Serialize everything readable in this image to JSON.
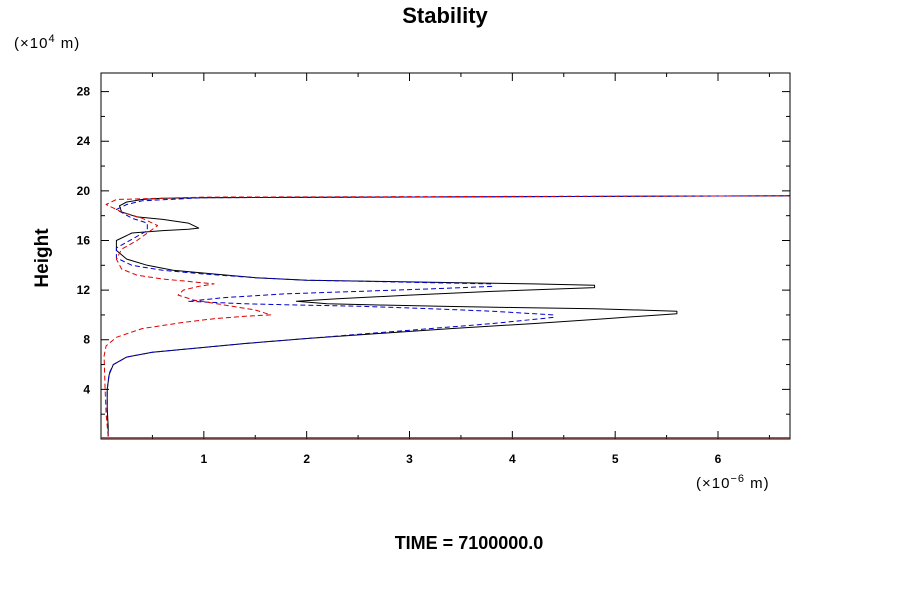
{
  "chart_data": {
    "type": "line",
    "title": "Stability",
    "ylabel": "Height",
    "xlabel": "",
    "y_unit": {
      "prefix": "(×10",
      "exp": "4",
      "suffix": " m)"
    },
    "x_unit": {
      "prefix": "(×10",
      "exp": "−6",
      "suffix": " m)"
    },
    "xlim": [
      0.0,
      6.7
    ],
    "ylim": [
      0.0,
      29.5
    ],
    "x_ticks": [
      1,
      2,
      3,
      4,
      5,
      6
    ],
    "y_ticks": [
      4,
      8,
      12,
      16,
      20,
      24,
      28
    ],
    "x_tick_labels": [
      "1",
      "2",
      "3",
      "4",
      "5",
      "6"
    ],
    "y_tick_labels": [
      "4",
      "8",
      "12",
      "16",
      "20",
      "24",
      "28"
    ],
    "footer": "TIME = 7100000.0",
    "series": [
      {
        "name": "black-solid",
        "color": "#000000",
        "dash": "",
        "x": [
          0.07,
          0.07,
          0.06,
          0.06,
          0.08,
          0.12,
          0.25,
          0.5,
          0.9,
          1.4,
          2.0,
          2.7,
          3.4,
          4.2,
          4.9,
          5.6,
          5.6,
          4.8,
          4.0,
          3.3,
          2.7,
          2.2,
          1.9,
          2.3,
          3.0,
          3.8,
          4.8,
          4.8,
          4.2,
          3.5,
          2.7,
          2.0,
          1.5,
          1.1,
          0.7,
          0.45,
          0.25,
          0.15,
          0.15,
          0.3,
          0.6,
          0.85,
          0.95,
          0.85,
          0.6,
          0.35,
          0.2,
          0.18,
          0.25,
          0.4,
          0.6,
          1.0,
          6.7
        ],
        "y": [
          0.2,
          1.0,
          2.5,
          4.0,
          5.2,
          6.0,
          6.6,
          7.0,
          7.3,
          7.7,
          8.1,
          8.5,
          8.9,
          9.3,
          9.7,
          10.1,
          10.3,
          10.5,
          10.6,
          10.7,
          10.8,
          10.9,
          11.1,
          11.3,
          11.6,
          11.9,
          12.2,
          12.4,
          12.5,
          12.6,
          12.7,
          12.8,
          13.0,
          13.3,
          13.6,
          14.0,
          14.5,
          15.2,
          16.0,
          16.6,
          16.8,
          16.9,
          17.0,
          17.4,
          17.7,
          17.9,
          18.3,
          18.8,
          19.1,
          19.3,
          19.4,
          19.45,
          19.6
        ]
      },
      {
        "name": "blue-dashed",
        "color": "#0000cc",
        "dash": "5,3",
        "x": [
          0.07,
          0.06,
          0.06,
          0.08,
          0.12,
          0.25,
          0.5,
          0.9,
          1.4,
          2.0,
          2.6,
          3.2,
          3.8,
          4.4,
          4.4,
          3.8,
          3.2,
          2.5,
          1.9,
          1.4,
          0.85,
          1.2,
          1.8,
          2.5,
          3.2,
          3.8,
          3.8,
          3.2,
          2.6,
          2.0,
          1.5,
          1.0,
          0.6,
          0.3,
          0.15,
          0.15,
          0.3,
          0.45,
          0.45,
          0.3,
          0.15,
          0.25,
          0.4,
          1.0,
          6.7
        ],
        "y": [
          0.2,
          1.5,
          4.0,
          5.3,
          6.0,
          6.6,
          7.0,
          7.3,
          7.7,
          8.1,
          8.5,
          8.9,
          9.3,
          9.8,
          10.0,
          10.3,
          10.5,
          10.7,
          10.8,
          10.9,
          11.1,
          11.4,
          11.7,
          11.9,
          12.1,
          12.3,
          12.5,
          12.6,
          12.7,
          12.8,
          13.0,
          13.3,
          13.6,
          14.0,
          14.6,
          15.4,
          16.1,
          16.8,
          17.4,
          17.8,
          18.5,
          18.9,
          19.2,
          19.45,
          19.6
        ]
      },
      {
        "name": "red-dashed",
        "color": "#dd0000",
        "dash": "5,3",
        "x": [
          0.07,
          0.05,
          0.04,
          0.03,
          0.05,
          0.15,
          0.4,
          0.8,
          1.1,
          1.4,
          1.65,
          1.5,
          1.2,
          0.9,
          0.75,
          0.8,
          0.95,
          1.1,
          0.85,
          0.6,
          0.35,
          0.2,
          0.15,
          0.2,
          0.35,
          0.45,
          0.55,
          0.4,
          0.2,
          0.05,
          0.15,
          1.0,
          6.7
        ],
        "y": [
          0.2,
          2.0,
          4.0,
          6.7,
          7.5,
          8.2,
          8.9,
          9.4,
          9.7,
          9.9,
          10.0,
          10.4,
          10.8,
          11.2,
          11.6,
          12.0,
          12.3,
          12.5,
          12.7,
          12.9,
          13.2,
          13.7,
          14.5,
          15.3,
          16.0,
          16.6,
          17.2,
          17.8,
          18.3,
          18.9,
          19.3,
          19.5,
          19.6
        ]
      },
      {
        "name": "baseline",
        "color": "#cc0000",
        "dash": "",
        "x": [
          0.0,
          6.7
        ],
        "y": [
          0.1,
          0.1
        ]
      }
    ]
  }
}
